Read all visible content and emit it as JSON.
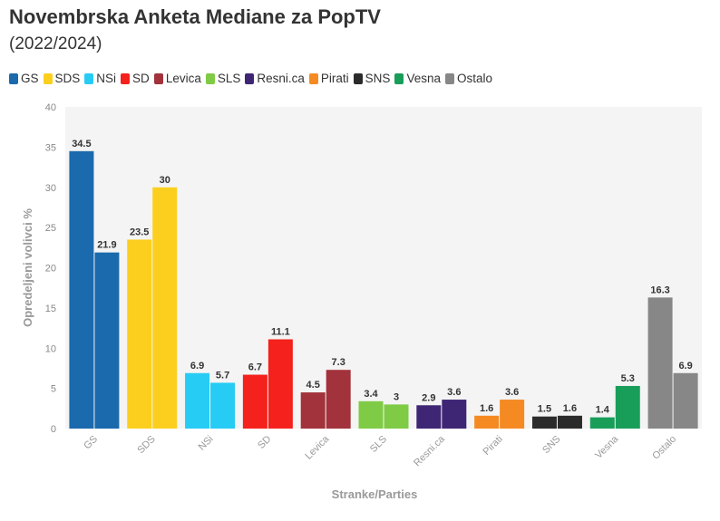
{
  "title": "Novembrska Anketa Mediane za PopTV",
  "subtitle": "(2022/2024)",
  "chart_data": {
    "type": "bar",
    "title": "Novembrska Anketa Mediane za PopTV",
    "subtitle": "(2022/2024)",
    "xlabel": "Stranke/Parties",
    "ylabel": "Opredeljeni volivci %",
    "ylim": [
      0,
      40
    ],
    "yticks": [
      0,
      5,
      10,
      15,
      20,
      25,
      30,
      35,
      40
    ],
    "grid": false,
    "legend_position": "top-left",
    "categories": [
      "GS",
      "SDS",
      "NSi",
      "SD",
      "Levica",
      "SLS",
      "Resni.ca",
      "Pirati",
      "SNS",
      "Vesna",
      "Ostalo"
    ],
    "colors": [
      "#1a6aad",
      "#fccf1e",
      "#27ccf5",
      "#f4211c",
      "#a2323b",
      "#7fcb45",
      "#3f2675",
      "#f58a22",
      "#2b2b2b",
      "#199e5a",
      "#878787"
    ],
    "series": [
      {
        "values": [
          34.5,
          23.5,
          6.9,
          6.7,
          4.5,
          3.4,
          2.9,
          1.6,
          1.5,
          1.4,
          16.3
        ]
      },
      {
        "values": [
          21.9,
          30,
          5.7,
          11.1,
          7.3,
          3,
          3.6,
          3.6,
          1.6,
          5.3,
          6.9
        ]
      }
    ]
  }
}
